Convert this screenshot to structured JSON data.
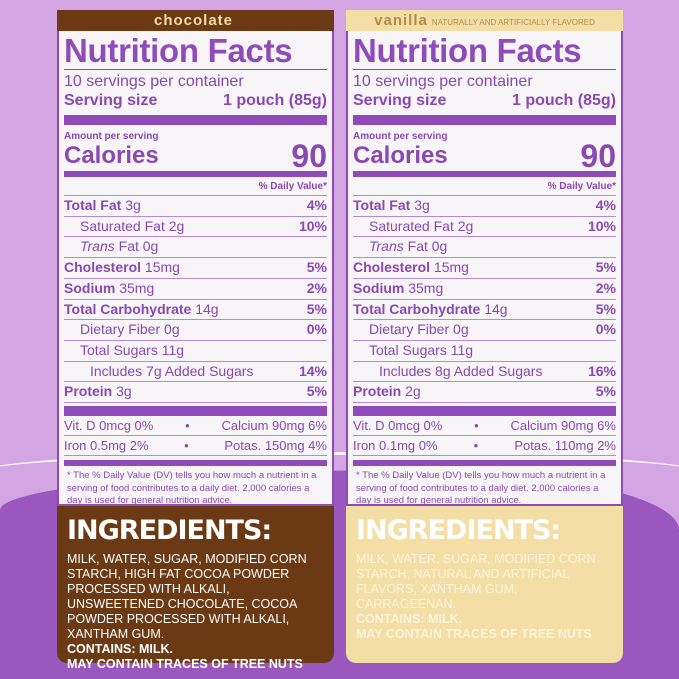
{
  "colors": {
    "background": "#d3a5e3",
    "purple": "#8f4cb8",
    "chocolate": "#6b3a14",
    "vanilla": "#f3dea6"
  },
  "common": {
    "title": "Nutrition Facts",
    "servings": "10 servings per container",
    "serving_size_label": "Serving size",
    "serving_size": "1 pouch (85g)",
    "amount_per_serving": "Amount per serving",
    "calories_label": "Calories",
    "dv_header": "% Daily Value*",
    "footnote": "* The % Daily Value (DV) tells you how much a nutrient in a serving of food contributes to a daily diet. 2,000 calories a day is used for general nutrition advice.",
    "ingredients_heading": "INGREDIENTS:",
    "dot": "•"
  },
  "panels": [
    {
      "flavor": "chocolate",
      "flavor_note": "",
      "calories": "90",
      "rows": [
        [
          "Total Fat",
          "3g",
          "4%"
        ],
        [
          "Saturated Fat",
          "2g",
          "10%"
        ],
        [
          "Trans",
          "Fat 0g",
          ""
        ],
        [
          "Cholesterol",
          "15mg",
          "5%"
        ],
        [
          "Sodium",
          "35mg",
          "2%"
        ],
        [
          "Total Carbohydrate",
          "14g",
          "5%"
        ],
        [
          "Dietary Fiber",
          "0g",
          "0%"
        ],
        [
          "Total Sugars",
          "11g",
          ""
        ],
        [
          "Includes 7g Added Sugars",
          "",
          "14%"
        ],
        [
          "Protein",
          "3g",
          "5%"
        ]
      ],
      "minerals": [
        [
          "Vit. D 0mcg 0%",
          "Calcium 90mg 6%"
        ],
        [
          "Iron 0.5mg 2%",
          "Potas. 150mg 4%"
        ]
      ],
      "ingredients": "MILK, WATER, SUGAR, MODIFIED CORN STARCH, HIGH FAT COCOA POWDER PROCESSED WITH ALKALI, UNSWEETENED CHOCOLATE, COCOA POWDER PROCESSED WITH ALKALI, XANTHAM GUM.",
      "contains": "CONTAINS: MILK.",
      "may_contain": "MAY CONTAIN TRACES OF TREE NUTS"
    },
    {
      "flavor": "vanilla",
      "flavor_note": "NATURALLY AND ARTIFICIALLY FLAVORED",
      "calories": "90",
      "rows": [
        [
          "Total Fat",
          "3g",
          "4%"
        ],
        [
          "Saturated Fat",
          "2g",
          "10%"
        ],
        [
          "Trans",
          "Fat 0g",
          ""
        ],
        [
          "Cholesterol",
          "15mg",
          "5%"
        ],
        [
          "Sodium",
          "35mg",
          "2%"
        ],
        [
          "Total Carbohydrate",
          "14g",
          "5%"
        ],
        [
          "Dietary Fiber",
          "0g",
          "0%"
        ],
        [
          "Total Sugars",
          "11g",
          ""
        ],
        [
          "Includes 8g Added Sugars",
          "",
          "16%"
        ],
        [
          "Protein",
          "2g",
          "5%"
        ]
      ],
      "minerals": [
        [
          "Vit. D 0mcg 0%",
          "Calcium 90mg 6%"
        ],
        [
          "Iron 0.1mg 0%",
          "Potas. 110mg 2%"
        ]
      ],
      "ingredients": "MILK, WATER, SUGAR, MODIFIED CORN STARCH, NATURAL AND ARTIFICIAL FLAVORS, XANTHAM GUM, CARRAGEENAN.",
      "contains": "CONTAINS: MILK.",
      "may_contain": "MAY CONTAIN TRACES OF TREE NUTS"
    }
  ]
}
